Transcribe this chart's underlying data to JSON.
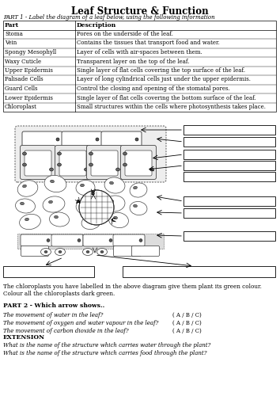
{
  "title": "Leaf Structure & Function",
  "part1_label": "PART 1 - Label the diagram of a leaf below, using the following information",
  "table_headers": [
    "Part",
    "Description"
  ],
  "table_rows": [
    [
      "Stoma",
      "Pores on the underside of the leaf."
    ],
    [
      "Vein",
      "Contains the tissues that transport food and water."
    ],
    [
      "Spongy Mesophyll",
      "Layer of cells with air-spaces between them."
    ],
    [
      "Waxy Cuticle",
      "Transparent layer on the top of the leaf."
    ],
    [
      "Upper Epidermis",
      "Single layer of flat cells covering the top surface of the leaf."
    ],
    [
      "Palisade Cells",
      "Layer of long cylindrical cells just under the upper epidermis."
    ],
    [
      "Guard Cells",
      "Control the closing and opening of the stomatal pores."
    ],
    [
      "Lower Epidermis",
      "Single layer of flat cells covering the bottom surface of the leaf."
    ],
    [
      "Chloroplast",
      "Small structures within the cells where photosynthesis takes place."
    ]
  ],
  "part2_label": "PART 2 - Which arrow shows..",
  "part2_questions": [
    [
      "The movement of water in the leaf?",
      "( A / B / C)"
    ],
    [
      "The movement of oxygen and water vapour in the leaf?",
      "( A / B / C)"
    ],
    [
      "The movement of carbon dioxide in the leaf?",
      "( A / B / C)"
    ]
  ],
  "extension_label": "EXTENSION",
  "extension_questions": [
    "What is the name of the structure which carries water through the plant?",
    "What is the name of the structure which carries food through the plant?"
  ],
  "chloroplast_note": "The chloroplasts you have labelled in the above diagram give them plant its green colour. Colour all the chloroplasts dark green.",
  "bg_color": "#ffffff",
  "text_color": "#000000"
}
